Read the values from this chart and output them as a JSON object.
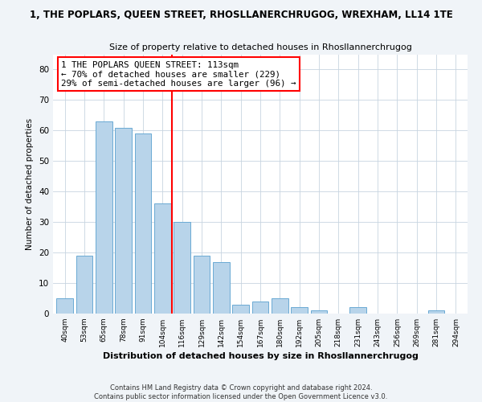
{
  "title": "1, THE POPLARS, QUEEN STREET, RHOSLLANERCHRUGOG, WREXHAM, LL14 1TE",
  "subtitle": "Size of property relative to detached houses in Rhosllannerchrugog",
  "xlabel": "Distribution of detached houses by size in Rhosllannerchrugog",
  "ylabel": "Number of detached properties",
  "bar_labels": [
    "40sqm",
    "53sqm",
    "65sqm",
    "78sqm",
    "91sqm",
    "104sqm",
    "116sqm",
    "129sqm",
    "142sqm",
    "154sqm",
    "167sqm",
    "180sqm",
    "192sqm",
    "205sqm",
    "218sqm",
    "231sqm",
    "243sqm",
    "256sqm",
    "269sqm",
    "281sqm",
    "294sqm"
  ],
  "bar_values": [
    5,
    19,
    63,
    61,
    59,
    36,
    30,
    19,
    17,
    3,
    4,
    5,
    2,
    1,
    0,
    2,
    0,
    0,
    0,
    1,
    0
  ],
  "bar_color": "#b8d4ea",
  "bar_edge_color": "#6aaad4",
  "vline_x_index": 6,
  "vline_color": "red",
  "annotation_lines": [
    "1 THE POPLARS QUEEN STREET: 113sqm",
    "← 70% of detached houses are smaller (229)",
    "29% of semi-detached houses are larger (96) →"
  ],
  "annotation_box_color": "white",
  "annotation_box_edge": "red",
  "ylim": [
    0,
    85
  ],
  "yticks": [
    0,
    10,
    20,
    30,
    40,
    50,
    60,
    70,
    80
  ],
  "footer_line1": "Contains HM Land Registry data © Crown copyright and database right 2024.",
  "footer_line2": "Contains public sector information licensed under the Open Government Licence v3.0.",
  "bg_color": "#f0f4f8",
  "plot_bg_color": "#ffffff"
}
